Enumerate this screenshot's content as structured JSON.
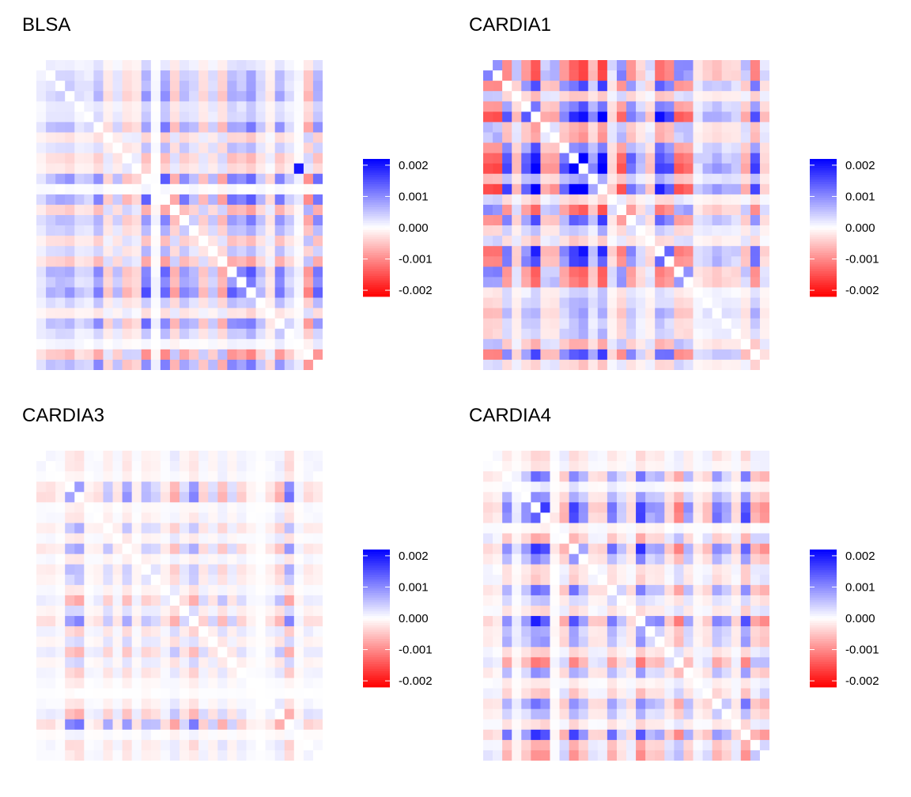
{
  "panels": [
    {
      "title": "BLSA",
      "pattern": {
        "seed": 3,
        "scale": 0.00082,
        "diag_zero": true,
        "strong_cell": [
          27,
          10
        ]
      }
    },
    {
      "title": "CARDIA1",
      "pattern": {
        "seed": 11,
        "scale": 0.00135,
        "diag_zero": true,
        "strong_cell": null
      }
    },
    {
      "title": "CARDIA3",
      "pattern": {
        "seed": 23,
        "scale": 0.00062,
        "diag_zero": true,
        "strong_cell": null
      }
    },
    {
      "title": "CARDIA4",
      "pattern": {
        "seed": 37,
        "scale": 0.00095,
        "diag_zero": true,
        "strong_cell": null
      }
    }
  ],
  "colorbar": {
    "ticks": [
      "0.002",
      "0.001",
      "0.000",
      "-0.001",
      "-0.002"
    ],
    "tick_values": [
      0.002,
      0.001,
      0.0,
      -0.001,
      -0.002
    ],
    "range": [
      -0.0022,
      0.0022
    ],
    "low_color": "#FF0000",
    "mid_color": "#FFFFFF",
    "high_color": "#0000FF"
  },
  "chart_data": [
    {
      "type": "heatmap",
      "title": "BLSA",
      "grid_size": 30,
      "value_range": [
        -0.002,
        0.002
      ],
      "color_scale": {
        "low": "#FF0000",
        "mid": "#FFFFFF",
        "high": "#0000FF"
      },
      "legend_ticks": [
        0.002,
        0.001,
        0.0,
        -0.001,
        -0.002
      ],
      "legend_position": "right"
    },
    {
      "type": "heatmap",
      "title": "CARDIA1",
      "grid_size": 30,
      "value_range": [
        -0.002,
        0.002
      ],
      "color_scale": {
        "low": "#FF0000",
        "mid": "#FFFFFF",
        "high": "#0000FF"
      },
      "legend_ticks": [
        0.002,
        0.001,
        0.0,
        -0.001,
        -0.002
      ],
      "legend_position": "right"
    },
    {
      "type": "heatmap",
      "title": "CARDIA3",
      "grid_size": 30,
      "value_range": [
        -0.002,
        0.002
      ],
      "color_scale": {
        "low": "#FF0000",
        "mid": "#FFFFFF",
        "high": "#0000FF"
      },
      "legend_ticks": [
        0.002,
        0.001,
        0.0,
        -0.001,
        -0.002
      ],
      "legend_position": "right"
    },
    {
      "type": "heatmap",
      "title": "CARDIA4",
      "grid_size": 30,
      "value_range": [
        -0.002,
        0.002
      ],
      "color_scale": {
        "low": "#FF0000",
        "mid": "#FFFFFF",
        "high": "#0000FF"
      },
      "legend_ticks": [
        0.002,
        0.001,
        0.0,
        -0.001,
        -0.002
      ],
      "legend_position": "right"
    }
  ]
}
